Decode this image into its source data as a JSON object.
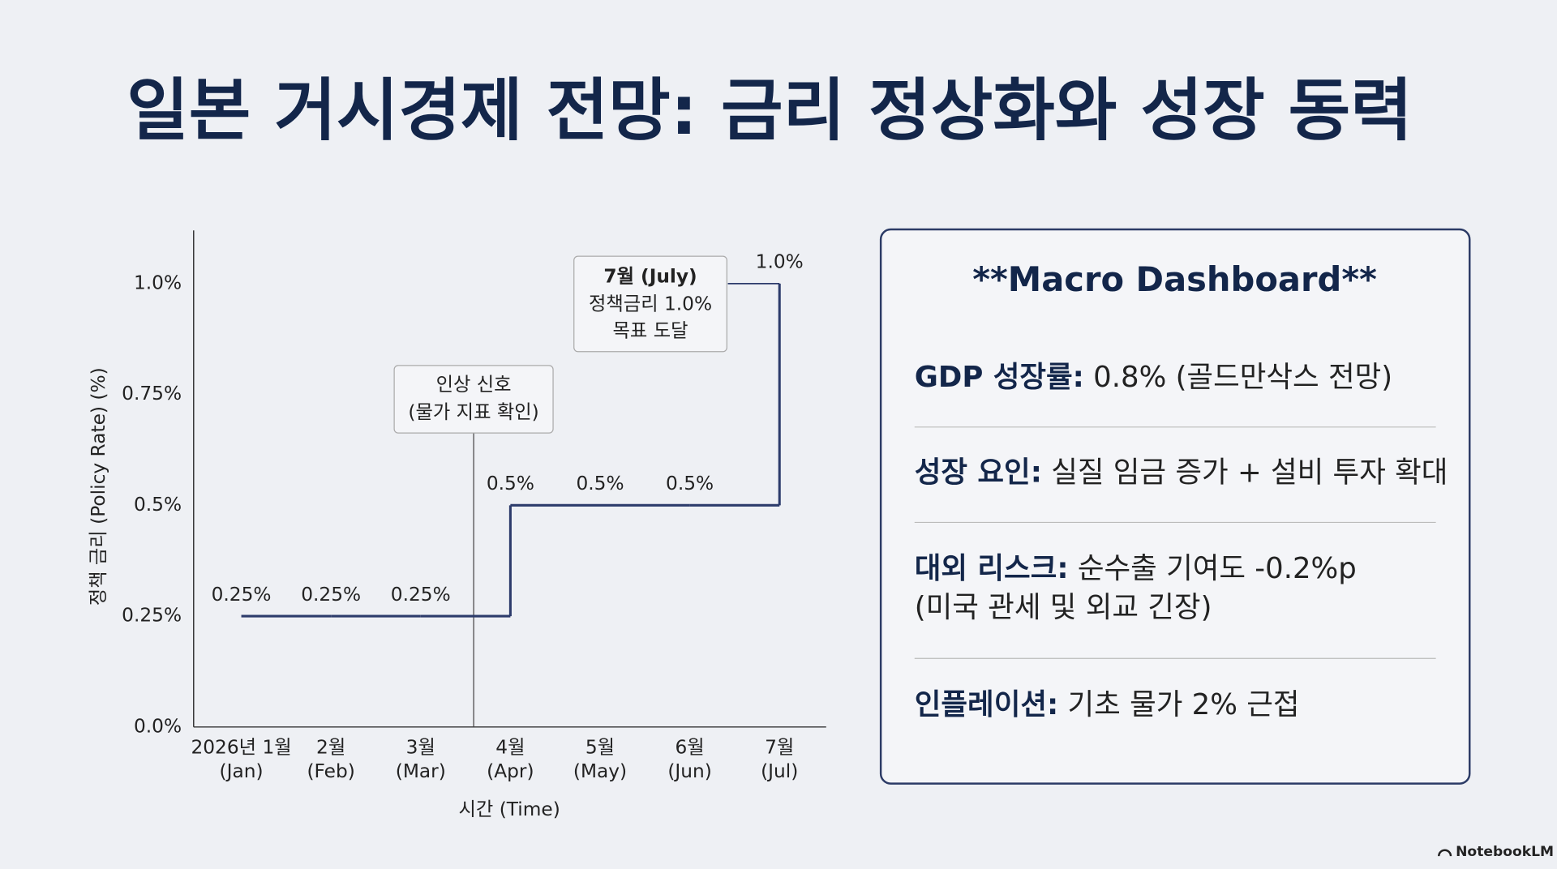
{
  "title": "일본 거시경제 전망: 금리 정상화와 성장 동력",
  "chart_data": {
    "type": "line",
    "step": "post",
    "ylabel": "정책 금리 (Policy Rate) (%)",
    "xlabel": "시간 (Time)",
    "categories": [
      "2026년 1월\n(Jan)",
      "2월\n(Feb)",
      "3월\n(Mar)",
      "4월\n(Apr)",
      "5월\n(May)",
      "6월\n(Jun)",
      "7월\n(Jul)"
    ],
    "series": [
      {
        "name": "정책 금리",
        "color": "#2c3b6b",
        "values": [
          0.25,
          0.25,
          0.25,
          0.5,
          0.5,
          0.5,
          1.0
        ],
        "value_labels": [
          "0.25%",
          "0.25%",
          "0.25%",
          "0.5%",
          "0.5%",
          "0.5%",
          "1.0%"
        ]
      }
    ],
    "ylim": [
      0,
      1.12
    ],
    "yticks": [
      {
        "value": 0,
        "label": "0.0%"
      },
      {
        "value": 0.25,
        "label": "0.25%"
      },
      {
        "value": 0.5,
        "label": "0.5%"
      },
      {
        "value": 0.75,
        "label": "0.75%"
      },
      {
        "value": 1.0,
        "label": "1.0%"
      }
    ],
    "grid": false,
    "legend": false,
    "annotations": [
      {
        "lines": [
          "인상 신호",
          "(물가 지표 확인)"
        ]
      },
      {
        "heading": "7월 (July)",
        "lines": [
          "정책금리 1.0%",
          "목표 도달"
        ]
      }
    ]
  },
  "dashboard": {
    "title": "**Macro Dashboard**",
    "items": [
      {
        "label": "GDP 성장률:",
        "lines": [
          " 0.8% (골드만삭스 전망)"
        ]
      },
      {
        "label": "성장 요인:",
        "lines": [
          " 실질 임금 증가 + 설비 투자 확대"
        ]
      },
      {
        "label": "대외 리스크:",
        "lines": [
          " 순수출 기여도 -0.2%p",
          "(미국 관세 및 외교 긴장)"
        ]
      },
      {
        "label": "인플레이션:",
        "lines": [
          " 기초 물가 2% 근접"
        ]
      }
    ]
  },
  "footer": "NotebookLM"
}
